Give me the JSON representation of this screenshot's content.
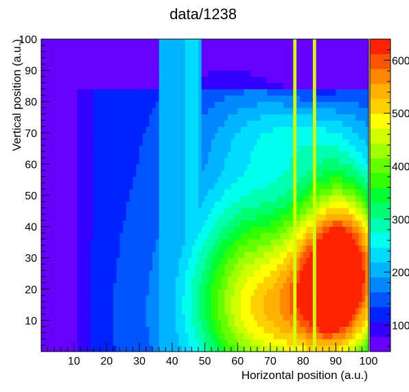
{
  "chart_data": {
    "type": "heatmap",
    "title": "data/1238",
    "xlabel": "Horizontal position (a.u.)",
    "ylabel": "Vertical position (a.u.)",
    "xlim": [
      0,
      100
    ],
    "ylim": [
      0,
      100
    ],
    "xticks": [
      10,
      20,
      30,
      40,
      50,
      60,
      70,
      80,
      90,
      100
    ],
    "yticks": [
      10,
      20,
      30,
      40,
      50,
      60,
      70,
      80,
      90,
      100
    ],
    "zlim": [
      50,
      640
    ],
    "zticks": [
      100,
      200,
      300,
      400,
      500,
      600
    ],
    "zticklabels": [
      "100",
      "200",
      "300",
      "400",
      "500",
      "600"
    ],
    "palette": [
      "#6600ff",
      "#3300ff",
      "#0022ff",
      "#0055ff",
      "#0088ff",
      "#00b4ff",
      "#00dcff",
      "#00ffee",
      "#00ffb0",
      "#00ff70",
      "#00ff33",
      "#33ff00",
      "#66ff00",
      "#a0ff00",
      "#d0ff00",
      "#ffff00",
      "#ffd000",
      "#ffb000",
      "#ff8800",
      "#ff5500",
      "#ff2200"
    ],
    "grid": false,
    "value_summary": {
      "background_level": 60,
      "low_region_x_0_to_12": 60,
      "band_x_36_to_49": 190,
      "band_x_44_to_48": 240,
      "lines_at_x": [
        77.5,
        83.5
      ],
      "line_level": 470,
      "peak": {
        "x": 92,
        "y": 27,
        "value": 620
      }
    }
  }
}
